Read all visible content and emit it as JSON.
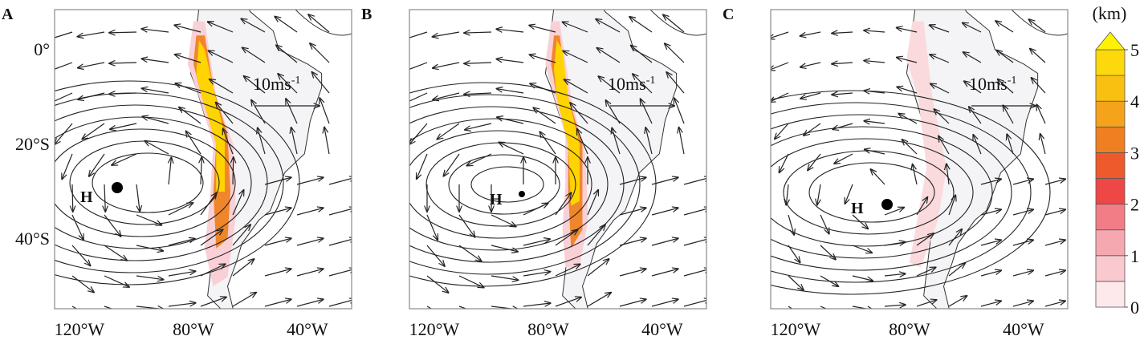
{
  "panels": [
    {
      "label": "A",
      "high_label": "H",
      "scale_label": "10ms",
      "scale_exponent": "-1"
    },
    {
      "label": "B",
      "high_label": "H",
      "scale_label": "10ms",
      "scale_exponent": "-1"
    },
    {
      "label": "C",
      "high_label": "H",
      "scale_label": "10ms",
      "scale_exponent": "-1"
    }
  ],
  "y_axis_labels": [
    "0°",
    "20°S",
    "40°S"
  ],
  "x_axis_labels": [
    "120°W",
    "80°W",
    "40°W"
  ],
  "colorbar": {
    "unit": "(km)",
    "ticks": [
      0,
      1,
      2,
      3,
      4,
      5
    ]
  }
}
